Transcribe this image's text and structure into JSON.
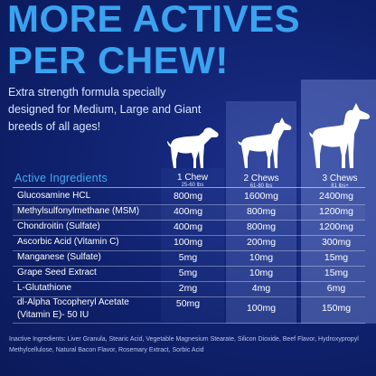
{
  "headline": {
    "line1": "MORE ACTIVES",
    "line2": "PER CHEW!"
  },
  "subtitle": "Extra strength formula specially designed for Medium, Large and Giant breeds of all ages!",
  "colors": {
    "headline": "#3aa3f0",
    "background": "#0e1f66",
    "section_title": "#43a9f2"
  },
  "columns": [
    {
      "title": "1 Chew",
      "range": "25-60 lbs",
      "icon": "medium-dog-icon"
    },
    {
      "title": "2 Chews",
      "range": "61-80 lbs",
      "icon": "large-dog-icon"
    },
    {
      "title": "3 Chews",
      "range": "81 lbs+",
      "icon": "giant-dog-icon"
    }
  ],
  "table": {
    "title": "Active Ingredients",
    "rows": [
      {
        "name": "Glucosamine HCL",
        "v1": "800mg",
        "v2": "1600mg",
        "v3": "2400mg"
      },
      {
        "name": "Methylsulfonylmethane (MSM)",
        "v1": "400mg",
        "v2": "800mg",
        "v3": "1200mg"
      },
      {
        "name": "Chondroitin (Sulfate)",
        "v1": "400mg",
        "v2": "800mg",
        "v3": "1200mg"
      },
      {
        "name": "Ascorbic Acid (Vitamin C)",
        "v1": "100mg",
        "v2": "200mg",
        "v3": "300mg"
      },
      {
        "name": "Manganese (Sulfate)",
        "v1": "5mg",
        "v2": "10mg",
        "v3": "15mg"
      },
      {
        "name": "Grape Seed Extract",
        "v1": "5mg",
        "v2": "10mg",
        "v3": "15mg"
      },
      {
        "name": "L-Glutathione",
        "v1": "2mg",
        "v2": "4mg",
        "v3": "6mg"
      },
      {
        "name": "dl-Alpha Tocopheryl Acetate",
        "name2": "(Vitamin E)- 50 IU",
        "v1": "50mg",
        "v2": "100mg",
        "v3": "150mg"
      }
    ]
  },
  "inactive": "Inactive Ingredients: Liver Granula, Stearic Acid, Vegetable Magnesium Stearate, Silicon Dioxide, Beef Flavor, Hydroxypropyl Methylcellulose, Natural Bacon Flavor, Rosemary Extract, Sorbic Acid"
}
